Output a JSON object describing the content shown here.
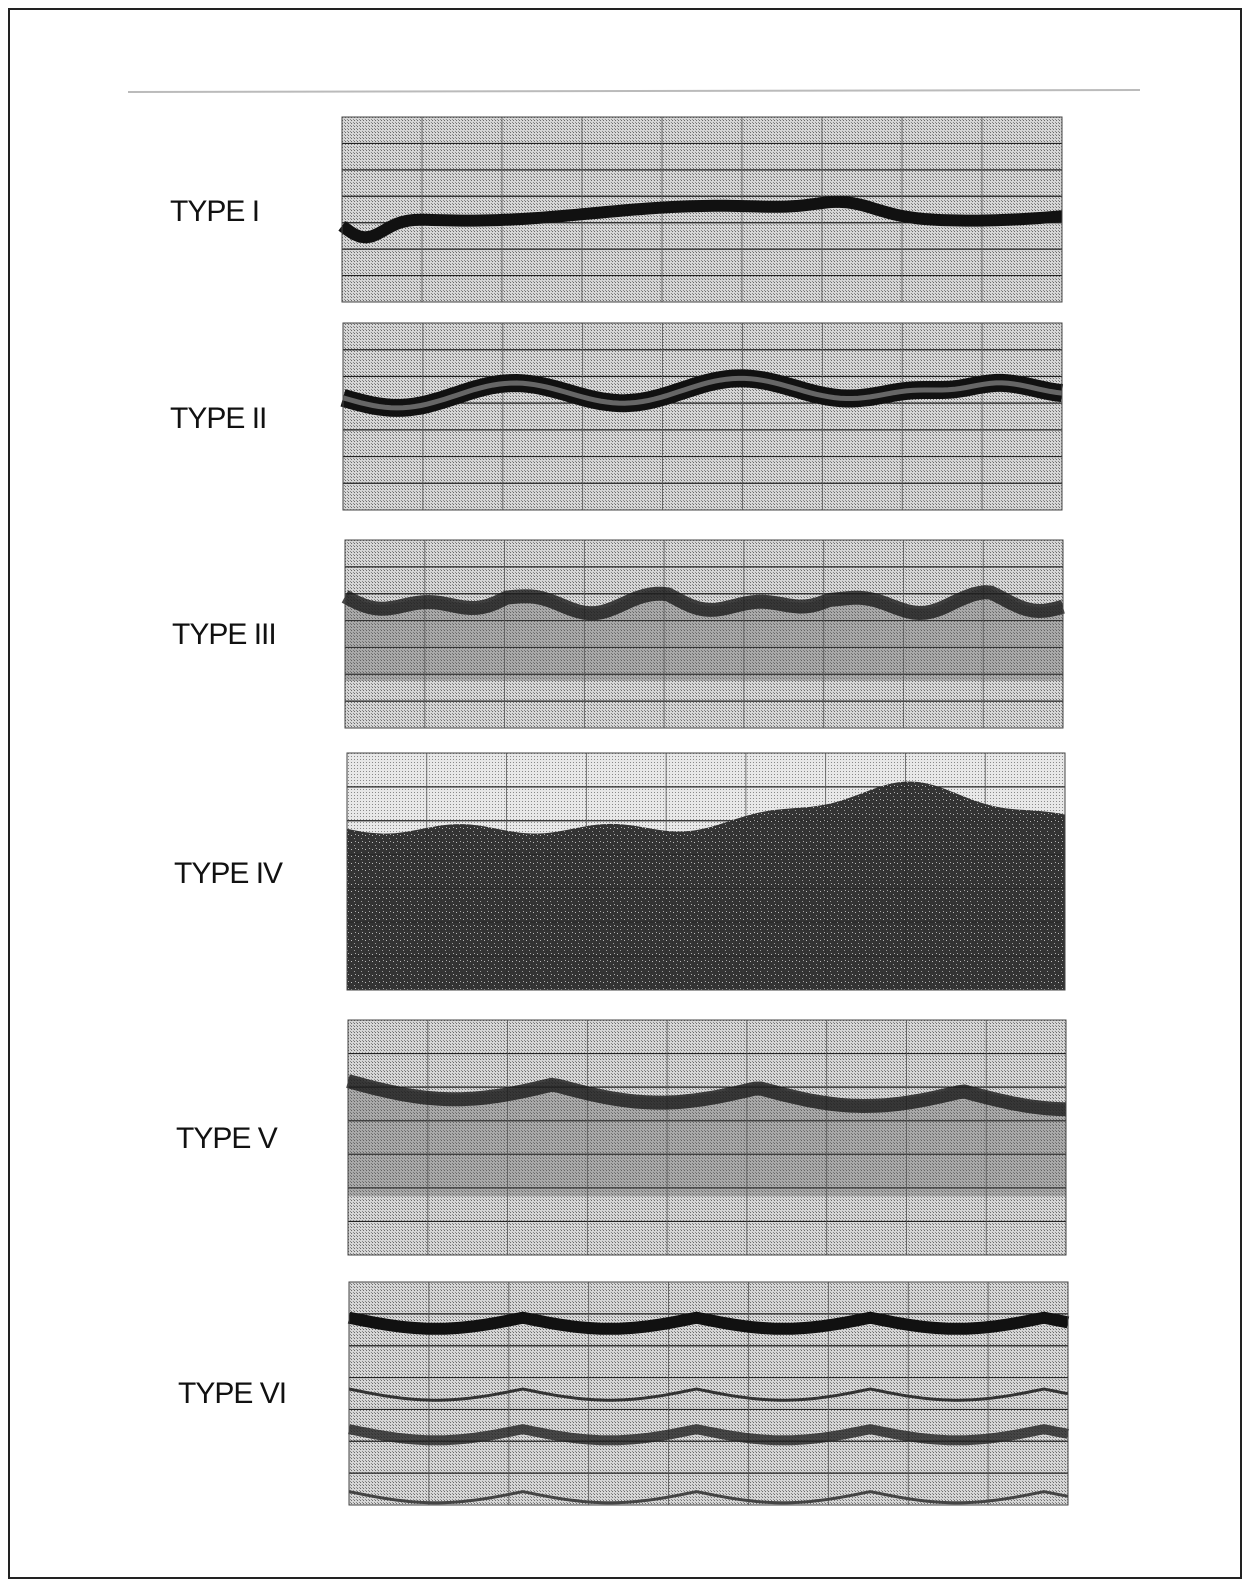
{
  "panels": [
    {
      "label": "TYPE I"
    },
    {
      "label": "TYPE II"
    },
    {
      "label": "TYPE III"
    },
    {
      "label": "TYPE IV"
    },
    {
      "label": "TYPE V"
    },
    {
      "label": "TYPE VI"
    }
  ]
}
